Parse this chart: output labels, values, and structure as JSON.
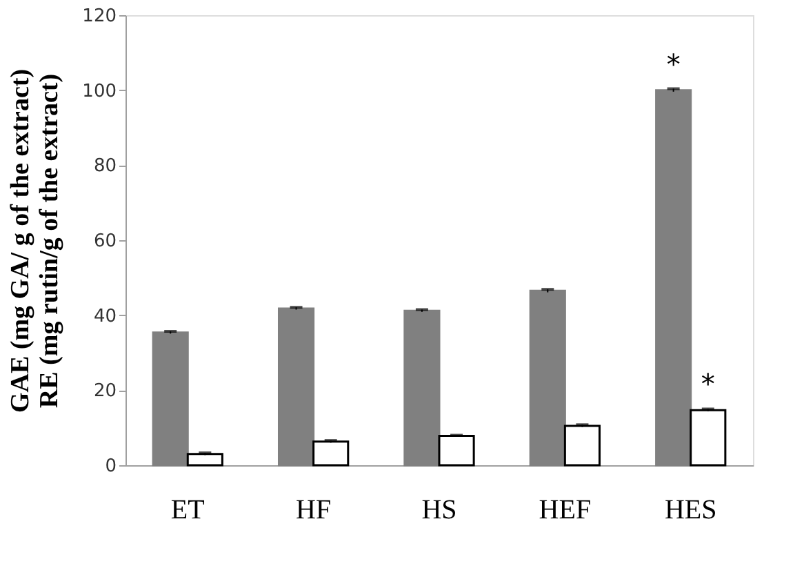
{
  "chart_data": {
    "type": "bar",
    "ylabel": "GAE (mg GA/ g of the extract)\nRE (mg rutin/g of the extract)",
    "categories": [
      "ET",
      "HF",
      "HS",
      "HEF",
      "HES"
    ],
    "series": [
      {
        "color": "#808080",
        "values": [
          35.4,
          41.8,
          41.2,
          46.5,
          100
        ],
        "errors": [
          0.3,
          0.3,
          0.3,
          0.4,
          0.4
        ]
      },
      {
        "color": "#ffffff",
        "values": [
          3.0,
          6.3,
          7.8,
          10.5,
          14.7
        ],
        "errors": [
          0.3,
          0.3,
          0.2,
          0.3,
          0.3
        ]
      }
    ],
    "ylim": [
      0,
      120
    ],
    "yticks": [
      0,
      20,
      40,
      60,
      80,
      100,
      120
    ],
    "annotations": [
      {
        "text": "*",
        "x": "HES",
        "y": 100
      },
      {
        "text": "*",
        "x": "HES",
        "y": 14.7
      }
    ],
    "grid": false,
    "legend": false
  }
}
